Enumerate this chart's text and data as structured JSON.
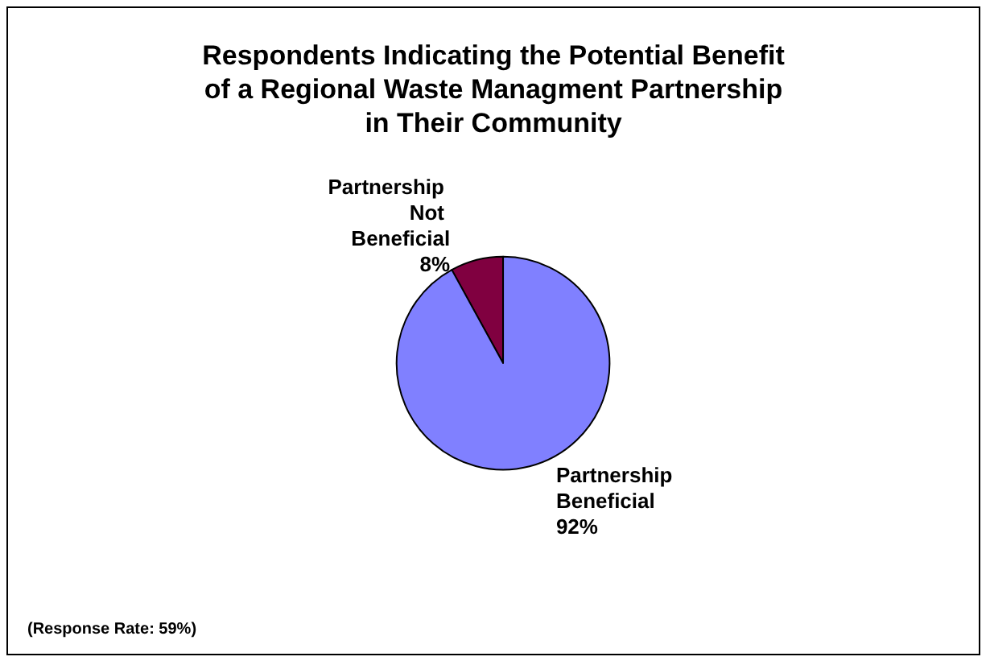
{
  "chart_data": {
    "type": "pie",
    "title": "Respondents Indicating the Potential Benefit\nof a Regional Waste Managment Partnership\nin Their Community",
    "categories": [
      "Partnership Not Beneficial",
      "Partnership Beneficial"
    ],
    "values": [
      8,
      92
    ],
    "value_labels": [
      "8%",
      "92%"
    ],
    "colors": [
      "#800040",
      "#8080ff"
    ],
    "annotations": [
      "(Response Rate: 59%)"
    ],
    "legend": false
  }
}
